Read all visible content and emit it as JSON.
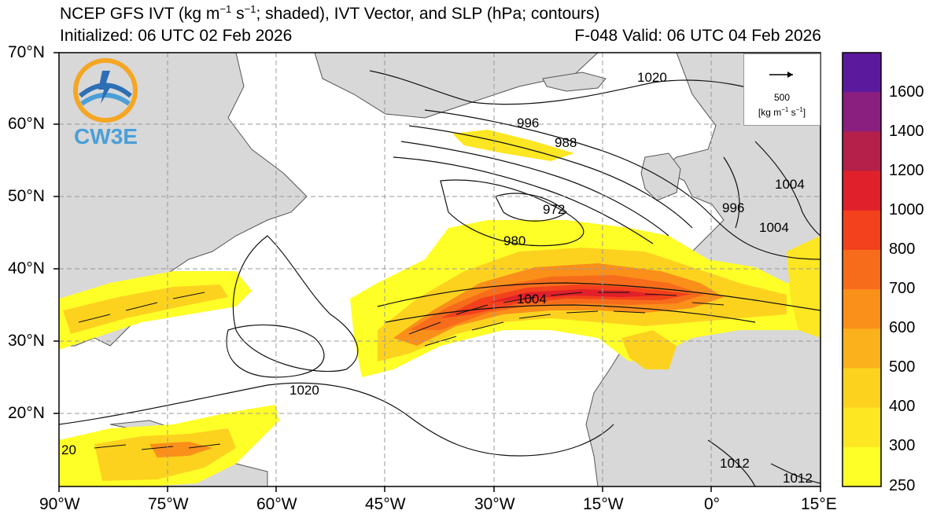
{
  "title": {
    "main": "NCEP GFS IVT (kg m",
    "exp1": "−1",
    "mid": " s",
    "exp2": "−1",
    "rest": "; shaded), IVT Vector, and SLP (hPa; contours)"
  },
  "initialized": "Initialized: 06 UTC 02 Feb 2026",
  "valid": "F-048  Valid: 06 UTC 04 Feb 2026",
  "lat_labels": [
    "70°N",
    "60°N",
    "50°N",
    "40°N",
    "30°N",
    "20°N"
  ],
  "lon_labels": [
    "90°W",
    "75°W",
    "60°W",
    "45°W",
    "30°W",
    "15°W",
    "0°",
    "15°E"
  ],
  "colorbar": {
    "labels": [
      "1600",
      "1400",
      "1200",
      "1000",
      "800",
      "700",
      "600",
      "500",
      "400",
      "300",
      "250"
    ],
    "colors": [
      "#5b1a9e",
      "#8a1f80",
      "#b5204a",
      "#e0202a",
      "#f3401d",
      "#f76c1b",
      "#fa8f1a",
      "#fbb11c",
      "#fcd21f",
      "#fde622",
      "#ffff28"
    ]
  },
  "legend": {
    "value": "500",
    "unit_base": "[kg m",
    "unit_exp1": "−1",
    "unit_mid": " s",
    "unit_exp2": "−1",
    "unit_end": "]"
  },
  "logo": {
    "text": "CW3E"
  },
  "contour_labels": [
    "1020",
    "996",
    "988",
    "972",
    "980",
    "1004",
    "1020",
    "996",
    "1004",
    "1004",
    "1012",
    "1012",
    "20"
  ],
  "colors": {
    "land": "#d8d8d8",
    "ocean": "#ffffff",
    "grid": "#999999",
    "coast": "#555555"
  }
}
